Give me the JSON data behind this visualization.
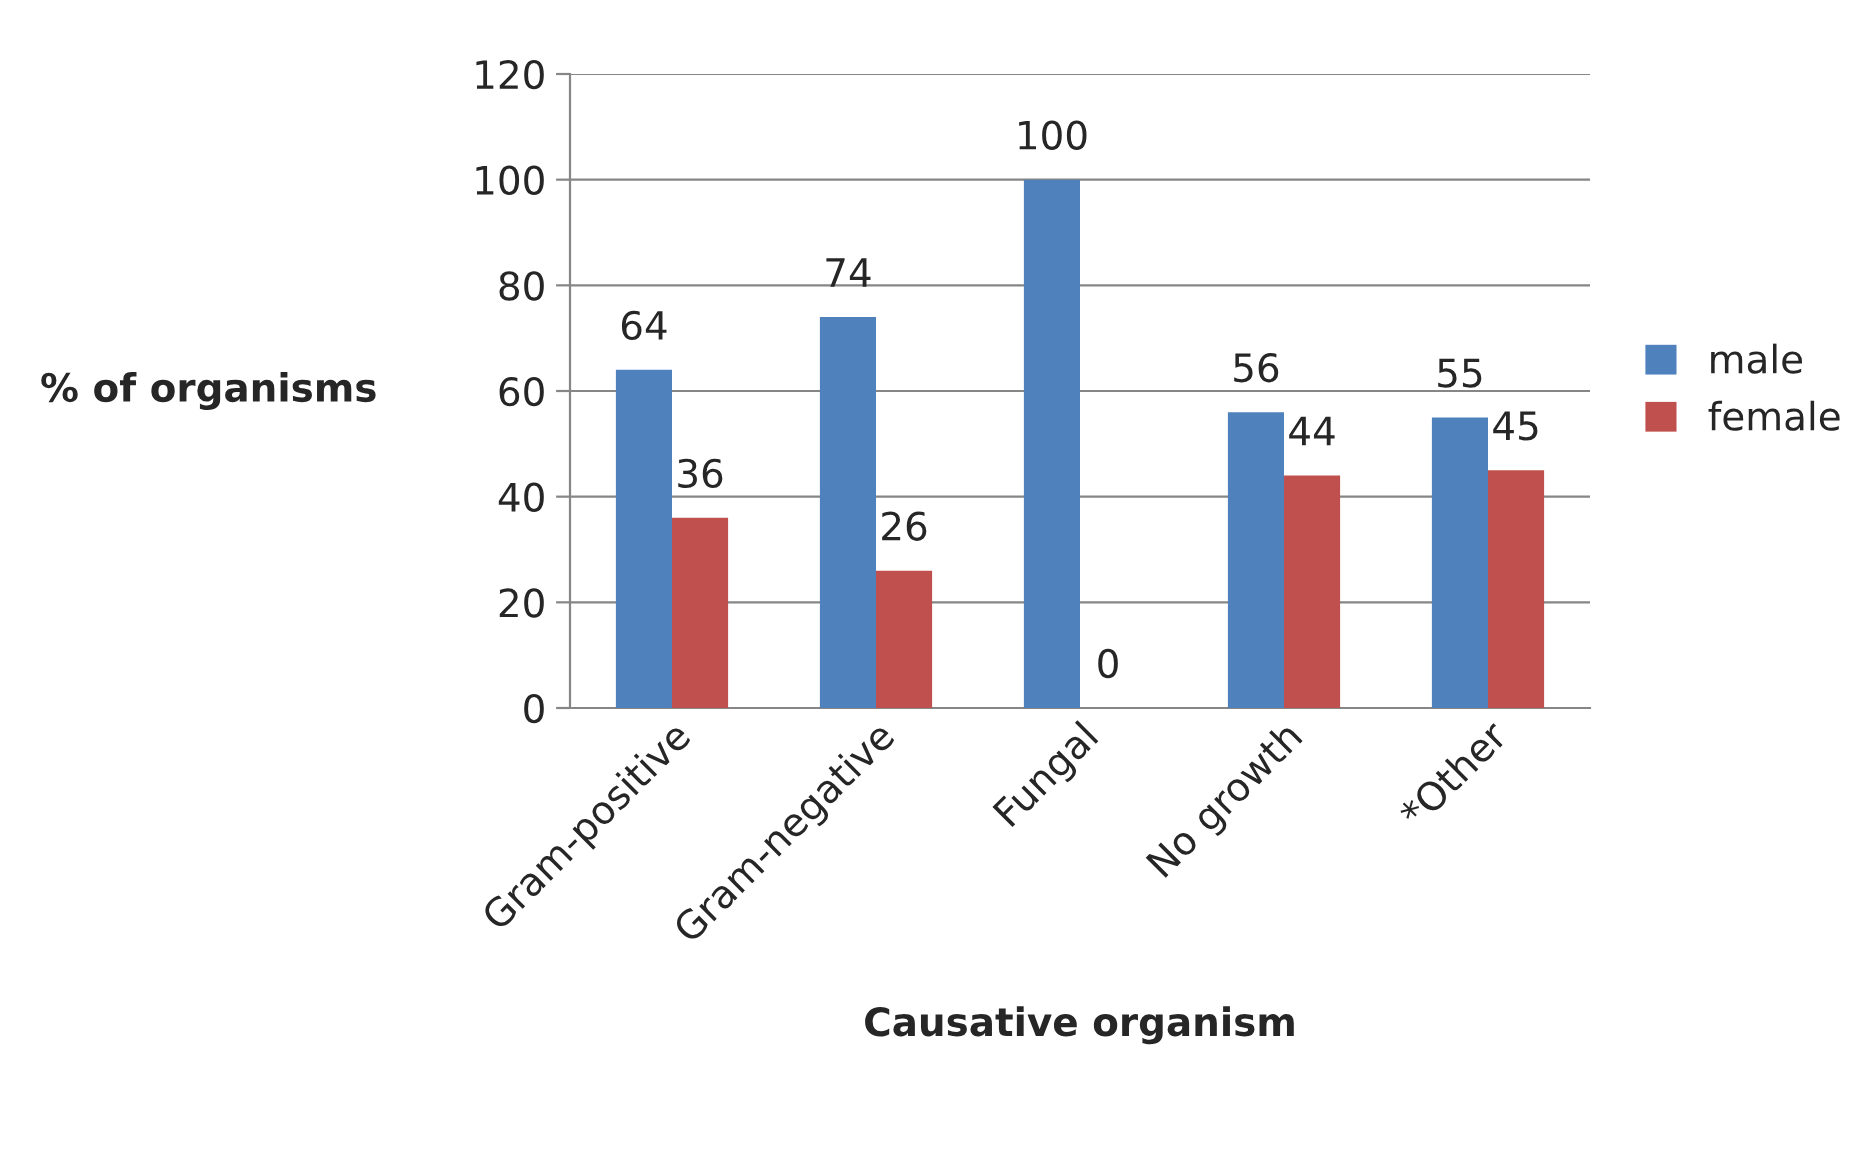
{
  "chart_data": {
    "type": "bar",
    "categories": [
      "Gram-positive",
      "Gram-negative",
      "Fungal",
      "No growth",
      "*Other"
    ],
    "series": [
      {
        "name": "male",
        "color": "#4f81bd",
        "values": [
          64,
          74,
          100,
          56,
          55
        ]
      },
      {
        "name": "female",
        "color": "#c0504d",
        "values": [
          36,
          26,
          0,
          44,
          45
        ]
      }
    ],
    "xlabel": "Causative organism",
    "ylabel": "% of organisms",
    "ylim": [
      0,
      120
    ],
    "yticks": [
      0,
      20,
      40,
      60,
      80,
      100,
      120
    ],
    "grid": "y",
    "legend": "right",
    "data_labels": true
  }
}
